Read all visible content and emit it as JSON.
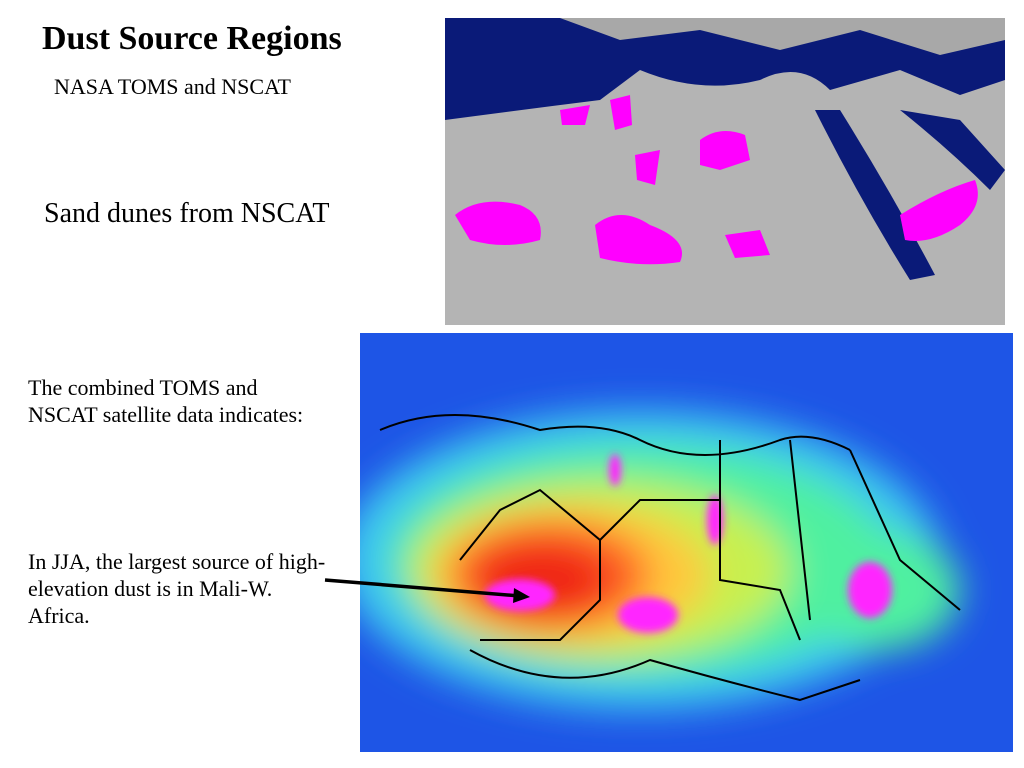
{
  "slide": {
    "title": "Dust Source Regions",
    "subtitle": "NASA TOMS and NSCAT",
    "caption_top": "Sand dunes from NSCAT",
    "paragraphs": [
      "The combined TOMS and NSCAT satellite data indicates:",
      "In JJA, the largest source of high-elevation dust is in Mali-W. Africa."
    ]
  }
}
